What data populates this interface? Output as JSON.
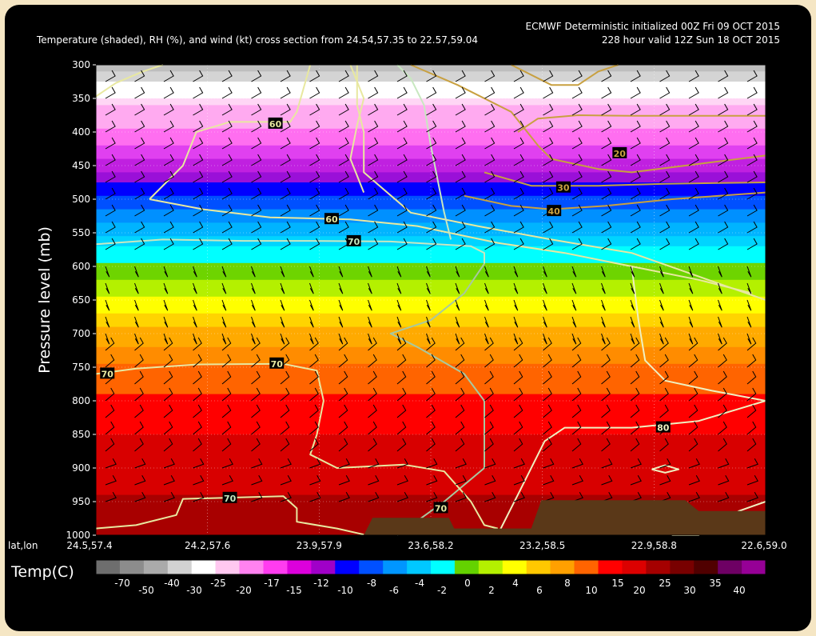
{
  "header": {
    "line1": "ECMWF Deterministic initialized 00Z Fri 09 OCT 2015",
    "line2_left": "Temperature (shaded), RH (%), and wind (kt) cross section from 24.54,57.35 to 22.57,59.04",
    "line2_right": "228 hour valid 12Z Sun 18 OCT 2015"
  },
  "chart_data": {
    "type": "heatmap",
    "ylabel": "Pressure level (mb)",
    "xlabel": "lat,lon",
    "y_axis": {
      "ticks": [
        "300",
        "350",
        "400",
        "450",
        "500",
        "550",
        "600",
        "650",
        "700",
        "750",
        "800",
        "850",
        "900",
        "950",
        "1000"
      ],
      "range": [
        300,
        1000
      ],
      "reversed": true
    },
    "x_axis": {
      "ticks": [
        "24.5,57.4",
        "24.2,57.6",
        "23.9,57.9",
        "23.6,58.2",
        "23.2,58.5",
        "22.9,58.8",
        "22.6,59.0"
      ]
    },
    "temperature_layers": [
      {
        "p_top": 300,
        "p_bot": 310,
        "color": "#bebebe"
      },
      {
        "p_top": 310,
        "p_bot": 325,
        "color": "#d4d4d4"
      },
      {
        "p_top": 325,
        "p_bot": 350,
        "color": "#ffffff"
      },
      {
        "p_top": 350,
        "p_bot": 360,
        "color": "#ffd6f5"
      },
      {
        "p_top": 360,
        "p_bot": 395,
        "color": "#ffaaf0"
      },
      {
        "p_top": 395,
        "p_bot": 420,
        "color": "#ff6ef0"
      },
      {
        "p_top": 420,
        "p_bot": 440,
        "color": "#e040f0"
      },
      {
        "p_top": 440,
        "p_bot": 460,
        "color": "#c020e0"
      },
      {
        "p_top": 460,
        "p_bot": 475,
        "color": "#9a10d8"
      },
      {
        "p_top": 475,
        "p_bot": 495,
        "color": "#0000ff"
      },
      {
        "p_top": 495,
        "p_bot": 515,
        "color": "#0050ff"
      },
      {
        "p_top": 515,
        "p_bot": 535,
        "color": "#0090ff"
      },
      {
        "p_top": 535,
        "p_bot": 555,
        "color": "#00b4ff"
      },
      {
        "p_top": 555,
        "p_bot": 570,
        "color": "#00d4ff"
      },
      {
        "p_top": 570,
        "p_bot": 595,
        "color": "#00ffff"
      },
      {
        "p_top": 595,
        "p_bot": 620,
        "color": "#6ed400"
      },
      {
        "p_top": 620,
        "p_bot": 645,
        "color": "#b4f000"
      },
      {
        "p_top": 645,
        "p_bot": 670,
        "color": "#ffff00"
      },
      {
        "p_top": 670,
        "p_bot": 690,
        "color": "#ffd400"
      },
      {
        "p_top": 690,
        "p_bot": 720,
        "color": "#ffaa00"
      },
      {
        "p_top": 720,
        "p_bot": 745,
        "color": "#ff8c00"
      },
      {
        "p_top": 745,
        "p_bot": 790,
        "color": "#ff6400"
      },
      {
        "p_top": 790,
        "p_bot": 850,
        "color": "#ff0000"
      },
      {
        "p_top": 850,
        "p_bot": 940,
        "color": "#d80000"
      },
      {
        "p_top": 940,
        "p_bot": 1000,
        "color": "#a80000"
      }
    ],
    "rh_contour_labels": [
      {
        "text": "60",
        "x_frac": 0.268,
        "p": 388,
        "color": "#e8e8a0"
      },
      {
        "text": "60",
        "x_frac": 0.352,
        "p": 530,
        "color": "#e8e8a0"
      },
      {
        "text": "70",
        "x_frac": 0.385,
        "p": 563,
        "color": "#c8e8c0"
      },
      {
        "text": "20",
        "x_frac": 0.782,
        "p": 432,
        "color": "#c8a040"
      },
      {
        "text": "30",
        "x_frac": 0.698,
        "p": 483,
        "color": "#c8a040"
      },
      {
        "text": "40",
        "x_frac": 0.684,
        "p": 518,
        "color": "#c8a040"
      },
      {
        "text": "70",
        "x_frac": 0.017,
        "p": 760,
        "color": "#e8e8a0"
      },
      {
        "text": "70",
        "x_frac": 0.27,
        "p": 745,
        "color": "#e8e8a0"
      },
      {
        "text": "70",
        "x_frac": 0.2,
        "p": 945,
        "color": "#c8e8c0"
      },
      {
        "text": "70",
        "x_frac": 0.515,
        "p": 960,
        "color": "#e8e8a0"
      },
      {
        "text": "80",
        "x_frac": 0.847,
        "p": 840,
        "color": "#f0f0c0"
      }
    ],
    "terrain": {
      "color": "#5a3818",
      "profile": [
        {
          "x_frac": 0.4,
          "p": 1000
        },
        {
          "x_frac": 0.413,
          "p": 974
        },
        {
          "x_frac": 0.527,
          "p": 974
        },
        {
          "x_frac": 0.535,
          "p": 990
        },
        {
          "x_frac": 0.65,
          "p": 990
        },
        {
          "x_frac": 0.665,
          "p": 948
        },
        {
          "x_frac": 0.88,
          "p": 948
        },
        {
          "x_frac": 0.9,
          "p": 964
        },
        {
          "x_frac": 1.0,
          "p": 964
        },
        {
          "x_frac": 1.0,
          "p": 1000
        }
      ]
    },
    "colorbar": {
      "title": "Temp(C)",
      "colors": [
        "#6e6e6e",
        "#8c8c8c",
        "#aaaaaa",
        "#d2d2d2",
        "#ffffff",
        "#ffc8f0",
        "#ff82f0",
        "#ff3cf0",
        "#dc00dc",
        "#a000c8",
        "#0000ff",
        "#0050ff",
        "#0096ff",
        "#00c8ff",
        "#00ffff",
        "#64d200",
        "#b4f000",
        "#ffff00",
        "#ffc800",
        "#ffa000",
        "#ff6400",
        "#ff0000",
        "#dc0000",
        "#a50000",
        "#780000",
        "#500000",
        "#6e0064",
        "#960096"
      ],
      "labels_low": [
        "-70",
        "-40",
        "-25",
        "-17",
        "-12",
        "-8",
        "-4",
        "0",
        "4",
        "8",
        "15",
        "25",
        "35"
      ],
      "labels_high": [
        "-50",
        "-30",
        "-20",
        "-15",
        "-10",
        "-6",
        "-2",
        "2",
        "6",
        "10",
        "20",
        "30",
        "40"
      ]
    }
  }
}
